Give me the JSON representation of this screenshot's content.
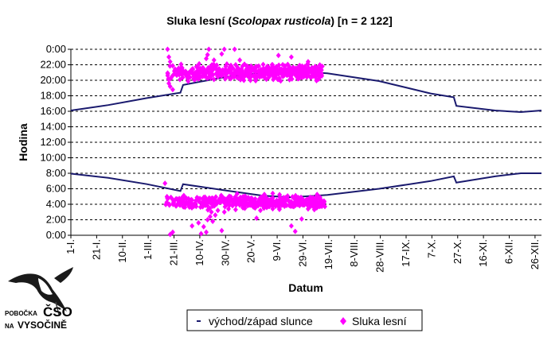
{
  "chart_data": {
    "type": "scatter",
    "title": {
      "prefix": "Sluka lesní (",
      "species": "Scolopax rusticola",
      "suffix": ") [n = 2 122]"
    },
    "xlabel": "Datum",
    "ylabel": "Hodina",
    "x_ticks": [
      "1-I.",
      "21-I.",
      "10-II.",
      "1-III.",
      "21-III.",
      "10-IV.",
      "30-IV.",
      "20-V.",
      "9-VI.",
      "29-VI.",
      "19-VII.",
      "8-VIII.",
      "28-VIII.",
      "17-IX.",
      "7-X.",
      "27-X.",
      "16-XI.",
      "6-XII.",
      "26-XII."
    ],
    "x_tick_days": [
      1,
      21,
      41,
      61,
      81,
      101,
      121,
      141,
      161,
      181,
      201,
      221,
      241,
      261,
      281,
      301,
      321,
      341,
      361
    ],
    "xlim": [
      1,
      366
    ],
    "y_ticks": [
      "0:00",
      "2:00",
      "4:00",
      "6:00",
      "8:00",
      "10:00",
      "12:00",
      "14:00",
      "16:00",
      "18:00",
      "20:00",
      "22:00",
      "0:00"
    ],
    "ylim": [
      0,
      24
    ],
    "grid": "horizontal dashed",
    "legend": {
      "placement": "bottom",
      "items": [
        {
          "label": "východ/západ slunce",
          "color": "#1a1a6e",
          "marker": "line"
        },
        {
          "label": "Sluka lesní",
          "color": "#ff00ff",
          "marker": "diamond"
        }
      ]
    },
    "series": [
      {
        "name": "východ/západ slunce",
        "kind": "sunset",
        "x": [
          1,
          30,
          60,
          86,
          88,
          120,
          150,
          172,
          200,
          240,
          280,
          298,
          300,
          330,
          350,
          366
        ],
        "y": [
          16.1,
          16.8,
          17.7,
          18.4,
          19.4,
          20.4,
          21.0,
          21.2,
          20.9,
          19.9,
          18.3,
          17.8,
          16.7,
          16.1,
          15.9,
          16.1
        ]
      },
      {
        "name": "východ/západ slunce",
        "kind": "sunrise",
        "x": [
          1,
          30,
          60,
          86,
          88,
          120,
          150,
          172,
          200,
          240,
          280,
          298,
          300,
          330,
          350,
          366
        ],
        "y": [
          7.95,
          7.4,
          6.6,
          5.7,
          6.6,
          5.8,
          5.1,
          4.9,
          5.2,
          6.0,
          7.0,
          7.6,
          6.8,
          7.6,
          8.0,
          8.0
        ]
      },
      {
        "name": "Sluka lesní",
        "color": "#ff00ff",
        "evening": {
          "x_range": [
            76,
            196
          ],
          "y_center": 21.0,
          "y_spread": 1.3,
          "count": 520,
          "outliers": [
            [
              76,
              24.0
            ],
            [
              77,
              23.0
            ],
            [
              78,
              22.4
            ],
            [
              77,
              19.6
            ],
            [
              78,
              19.2
            ],
            [
              80,
              18.8
            ],
            [
              103,
              21.4
            ],
            [
              106,
              22.8
            ],
            [
              107,
              23.3
            ],
            [
              108,
              24.0
            ],
            [
              112,
              22.6
            ],
            [
              118,
              23.4
            ],
            [
              120,
              24.0
            ],
            [
              122,
              22.1
            ],
            [
              125,
              20.2
            ],
            [
              128,
              24.0
            ],
            [
              132,
              22.6
            ],
            [
              137,
              21.4
            ],
            [
              158,
              20.1
            ],
            [
              162,
              23.2
            ],
            [
              172,
              23.0
            ],
            [
              185,
              22.4
            ],
            [
              196,
              21.8
            ]
          ]
        },
        "morning": {
          "x_range": [
            74,
            198
          ],
          "y_center": 4.3,
          "y_spread": 1.2,
          "count": 480,
          "outliers": [
            [
              74,
              6.7
            ],
            [
              78,
              0.1
            ],
            [
              80,
              0.4
            ],
            [
              95,
              1.2
            ],
            [
              100,
              1.6
            ],
            [
              102,
              0.2
            ],
            [
              104,
              1.1
            ],
            [
              106,
              0.4
            ],
            [
              107,
              2.0
            ],
            [
              109,
              2.4
            ],
            [
              110,
              3.0
            ],
            [
              111,
              1.8
            ],
            [
              113,
              2.6
            ],
            [
              115,
              3.2
            ],
            [
              118,
              0.6
            ],
            [
              120,
              3.0
            ],
            [
              145,
              2.2
            ],
            [
              148,
              3.2
            ],
            [
              172,
              1.2
            ],
            [
              175,
              0.5
            ],
            [
              180,
              2.1
            ],
            [
              185,
              3.4
            ],
            [
              198,
              3.7
            ]
          ]
        }
      }
    ]
  },
  "logo": {
    "line1": "POBOČKA",
    "big": "ČSO",
    "line2": "NA",
    "line3": "VYSOČINĚ"
  }
}
